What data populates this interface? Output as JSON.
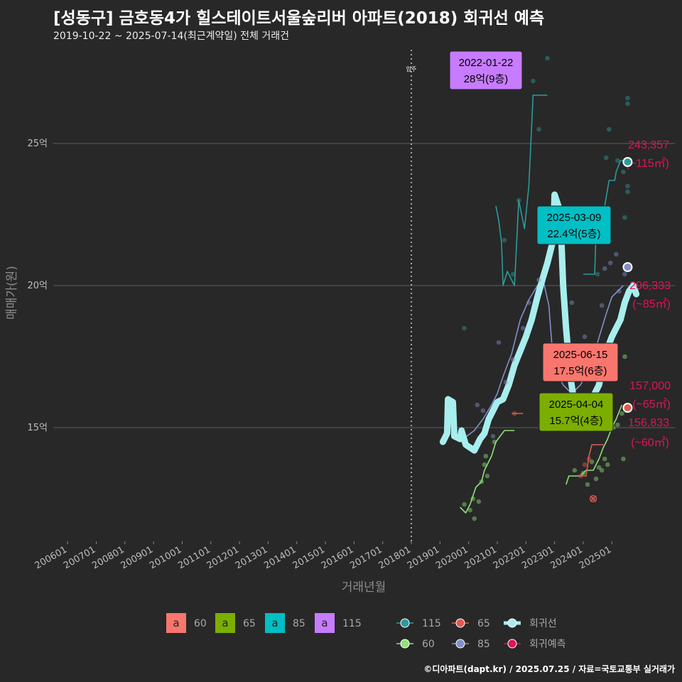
{
  "title": "[성동구] 금호동4가 힐스테이트서울숲리버 아파트(2018) 회귀선 예측",
  "subtitle": "2019-10-22 ~ 2025-07-14(최근계약일) 전체 거래건",
  "credit": "©디아파트(dapt.kr) / 2025.07.25 / 자료=국토교통부 실거래가",
  "colors": {
    "background": "#282828",
    "grid": "#5e5e5e",
    "area60": "#f8766d",
    "area65": "#7cae00",
    "area85": "#00bfc4",
    "area115": "#c77cff",
    "line115": "#2e9a9a",
    "line60": "#8fe07a",
    "line65": "#e05a4e",
    "line85": "#8090c8",
    "regression": "#a8eeee",
    "prediction": "#e0135b"
  },
  "chart_data": {
    "type": "line",
    "xlabel": "거래년월",
    "ylabel": "매매가(원)",
    "x_ticks": [
      "200601",
      "200701",
      "200801",
      "200901",
      "201001",
      "201101",
      "201201",
      "201301",
      "201401",
      "201501",
      "201601",
      "201701",
      "201801",
      "201901",
      "202001",
      "202101",
      "202201",
      "202301",
      "202401",
      "202501"
    ],
    "y_ticks": [
      {
        "value": 15,
        "label": "15억"
      },
      {
        "value": 20,
        "label": "20억"
      },
      {
        "value": 25,
        "label": "25억"
      }
    ],
    "xlim": [
      2005.5,
      2027.2
    ],
    "ylim": [
      11.0,
      28.5
    ],
    "vline": {
      "x": 2018.0,
      "label": "입주"
    },
    "series": [
      {
        "name": "115",
        "role": "area_line",
        "points": [
          [
            2020.95,
            22.8
          ],
          [
            2021.05,
            22.3
          ],
          [
            2021.15,
            21.5
          ],
          [
            2021.2,
            20.0
          ],
          [
            2021.35,
            20.5
          ],
          [
            2021.6,
            20.0
          ],
          [
            2021.75,
            23.0
          ],
          [
            2021.95,
            22.0
          ],
          [
            2022.1,
            23.5
          ],
          [
            2022.25,
            26.7
          ],
          [
            2022.75,
            26.7
          ]
        ]
      },
      {
        "name": "115-late",
        "role": "area_line",
        "points": [
          [
            2024.0,
            20.4
          ],
          [
            2024.4,
            20.4
          ],
          [
            2024.45,
            22.0
          ],
          [
            2024.7,
            22.5
          ],
          [
            2024.9,
            23.7
          ],
          [
            2025.1,
            23.7
          ],
          [
            2025.15,
            24.0
          ],
          [
            2025.3,
            24.4
          ],
          [
            2025.5,
            24.4
          ]
        ]
      },
      {
        "name": "60",
        "role": "area_line",
        "points": [
          [
            2019.7,
            12.2
          ],
          [
            2019.9,
            12.0
          ],
          [
            2020.05,
            12.3
          ],
          [
            2020.25,
            12.9
          ],
          [
            2020.45,
            13.1
          ],
          [
            2020.55,
            13.5
          ],
          [
            2020.8,
            14.0
          ],
          [
            2020.95,
            14.5
          ],
          [
            2021.1,
            14.7
          ],
          [
            2021.25,
            14.9
          ],
          [
            2021.6,
            14.9
          ]
        ]
      },
      {
        "name": "60-late",
        "role": "area_line",
        "points": [
          [
            2023.4,
            13.0
          ],
          [
            2023.5,
            13.3
          ],
          [
            2023.9,
            13.3
          ],
          [
            2024.1,
            13.5
          ],
          [
            2024.35,
            13.5
          ],
          [
            2024.55,
            13.9
          ],
          [
            2024.7,
            14.3
          ],
          [
            2024.85,
            14.6
          ],
          [
            2025.0,
            15.0
          ],
          [
            2025.15,
            15.3
          ],
          [
            2025.35,
            15.8
          ]
        ]
      },
      {
        "name": "65",
        "role": "area_line",
        "points": [
          [
            2021.5,
            15.5
          ],
          [
            2021.9,
            15.5
          ]
        ]
      },
      {
        "name": "65-late",
        "role": "area_line",
        "points": [
          [
            2023.85,
            13.3
          ],
          [
            2024.1,
            13.3
          ],
          [
            2024.2,
            14.0
          ],
          [
            2024.3,
            14.4
          ],
          [
            2024.7,
            14.4
          ]
        ]
      },
      {
        "name": "85",
        "role": "area_line",
        "points": [
          [
            2019.8,
            14.6
          ],
          [
            2020.2,
            14.9
          ],
          [
            2020.5,
            15.3
          ],
          [
            2020.8,
            15.8
          ],
          [
            2021.0,
            16.2
          ],
          [
            2021.2,
            16.8
          ],
          [
            2021.35,
            17.2
          ],
          [
            2021.5,
            17.6
          ],
          [
            2021.8,
            18.8
          ],
          [
            2022.1,
            19.5
          ],
          [
            2022.4,
            20.0
          ],
          [
            2022.6,
            20.2
          ],
          [
            2022.8,
            19.3
          ],
          [
            2022.9,
            18.0
          ],
          [
            2023.05,
            17.0
          ],
          [
            2023.3,
            16.5
          ],
          [
            2023.6,
            16.2
          ],
          [
            2023.9,
            16.5
          ],
          [
            2024.2,
            17.0
          ],
          [
            2024.5,
            18.0
          ],
          [
            2024.8,
            19.0
          ],
          [
            2025.0,
            19.6
          ],
          [
            2025.2,
            19.8
          ],
          [
            2025.4,
            20.0
          ]
        ]
      },
      {
        "name": "회귀선",
        "role": "regression",
        "points": [
          [
            2019.1,
            14.5
          ],
          [
            2019.25,
            14.8
          ],
          [
            2019.28,
            16.0
          ],
          [
            2019.45,
            15.9
          ],
          [
            2019.5,
            14.7
          ],
          [
            2019.7,
            14.6
          ],
          [
            2019.75,
            14.9
          ],
          [
            2019.9,
            14.4
          ],
          [
            2020.2,
            14.2
          ],
          [
            2020.4,
            14.6
          ],
          [
            2020.55,
            14.8
          ],
          [
            2020.7,
            15.3
          ],
          [
            2020.85,
            15.6
          ],
          [
            2021.0,
            15.9
          ],
          [
            2021.2,
            16.0
          ],
          [
            2021.4,
            16.5
          ],
          [
            2021.6,
            17.2
          ],
          [
            2021.8,
            17.7
          ],
          [
            2022.0,
            18.2
          ],
          [
            2022.2,
            18.8
          ],
          [
            2022.4,
            19.6
          ],
          [
            2022.6,
            20.3
          ],
          [
            2022.75,
            20.8
          ],
          [
            2022.85,
            21.2
          ],
          [
            2022.95,
            21.6
          ],
          [
            2023.0,
            23.2
          ],
          [
            2023.2,
            22.6
          ],
          [
            2023.3,
            20.0
          ],
          [
            2023.4,
            18.5
          ],
          [
            2023.55,
            16.8
          ],
          [
            2023.7,
            15.8
          ],
          [
            2023.85,
            15.4
          ],
          [
            2024.0,
            15.0
          ],
          [
            2024.25,
            15.2
          ],
          [
            2024.4,
            16.2
          ],
          [
            2024.55,
            16.5
          ],
          [
            2024.7,
            17.2
          ],
          [
            2024.85,
            17.8
          ],
          [
            2025.0,
            18.2
          ],
          [
            2025.15,
            18.5
          ],
          [
            2025.3,
            18.8
          ],
          [
            2025.45,
            19.4
          ],
          [
            2025.6,
            19.8
          ],
          [
            2025.75,
            20.0
          ],
          [
            2025.85,
            19.7
          ]
        ]
      }
    ],
    "scatter": [
      {
        "color": "#2e9a9a",
        "points": [
          [
            2021.25,
            21.6
          ],
          [
            2021.55,
            20.4
          ],
          [
            2021.75,
            23.0
          ],
          [
            2022.25,
            27.2
          ],
          [
            2022.45,
            25.5
          ],
          [
            2022.75,
            28.0
          ],
          [
            2024.5,
            20.4
          ],
          [
            2024.8,
            24.5
          ],
          [
            2024.9,
            25.5
          ],
          [
            2025.2,
            24.4
          ],
          [
            2025.55,
            26.6
          ],
          [
            2025.55,
            26.4
          ],
          [
            2025.55,
            23.3
          ],
          [
            2025.55,
            23.5
          ],
          [
            2025.4,
            24.0
          ],
          [
            2025.45,
            22.4
          ],
          [
            2019.85,
            18.5
          ]
        ]
      },
      {
        "color": "#8fe07a",
        "points": [
          [
            2019.85,
            12.3
          ],
          [
            2020.05,
            12.1
          ],
          [
            2020.15,
            12.5
          ],
          [
            2020.2,
            11.8
          ],
          [
            2020.35,
            12.4
          ],
          [
            2020.45,
            13.1
          ],
          [
            2020.55,
            13.7
          ],
          [
            2020.6,
            14.0
          ],
          [
            2020.65,
            13.3
          ],
          [
            2020.9,
            14.5
          ],
          [
            2023.7,
            13.5
          ],
          [
            2024.0,
            13.4
          ],
          [
            2024.15,
            13.0
          ],
          [
            2024.3,
            13.8
          ],
          [
            2024.45,
            13.2
          ],
          [
            2024.55,
            13.6
          ],
          [
            2024.65,
            13.5
          ],
          [
            2024.75,
            13.9
          ],
          [
            2024.85,
            13.7
          ],
          [
            2025.05,
            15.0
          ],
          [
            2025.2,
            15.1
          ],
          [
            2025.35,
            15.5
          ],
          [
            2025.4,
            13.9
          ],
          [
            2025.45,
            17.5
          ]
        ]
      },
      {
        "color": "#e05a4e",
        "points": [
          [
            2021.6,
            15.5
          ],
          [
            2023.9,
            13.3
          ],
          [
            2024.05,
            13.7
          ],
          [
            2024.2,
            13.9
          ],
          [
            2024.35,
            12.5
          ]
        ]
      },
      {
        "color": "#8090c8",
        "points": [
          [
            2020.3,
            15.8
          ],
          [
            2020.5,
            15.6
          ],
          [
            2020.85,
            14.7
          ],
          [
            2021.05,
            18.0
          ],
          [
            2021.3,
            16.6
          ],
          [
            2021.55,
            17.4
          ],
          [
            2021.9,
            18.5
          ],
          [
            2022.1,
            19.4
          ],
          [
            2022.45,
            20.2
          ],
          [
            2023.6,
            19.4
          ],
          [
            2024.05,
            18.2
          ],
          [
            2024.3,
            17.6
          ],
          [
            2024.65,
            19.3
          ],
          [
            2024.75,
            20.6
          ],
          [
            2024.95,
            20.8
          ],
          [
            2025.15,
            21.1
          ],
          [
            2025.25,
            19.8
          ],
          [
            2025.45,
            20.4
          ]
        ]
      }
    ],
    "cross_marks": [
      [
        2024.35,
        12.5
      ]
    ],
    "annotations": [
      {
        "date": "2022-01-22",
        "text": "28억(9층)",
        "area": "115",
        "x": 2021.85,
        "y": 28.0,
        "fill": "#c77cff"
      },
      {
        "date": "2025-03-09",
        "text": "22.4억(5층)",
        "area": "85",
        "x": 2025.2,
        "y": 22.4,
        "fill": "#00bfc4"
      },
      {
        "date": "2025-06-15",
        "text": "17.5억(6층)",
        "area": "60",
        "x": 2025.45,
        "y": 17.5,
        "fill": "#f8766d"
      },
      {
        "date": "2025-04-04",
        "text": "15.7억(4층)",
        "area": "65",
        "x": 2025.25,
        "y": 15.7,
        "fill": "#7cae00"
      }
    ],
    "predictions": [
      {
        "value": "243,357",
        "area": "(~115㎡)",
        "x": 2025.55,
        "y": 24.35,
        "point_color": "#2e9a9a"
      },
      {
        "value": "206,333",
        "area": "(~85㎡)",
        "x": 2025.55,
        "y": 20.65,
        "point_color": "#8090c8"
      },
      {
        "value": "157,000",
        "area": "(~65㎡)",
        "x": 2025.55,
        "y": 15.7,
        "point_color": "#e05a4e"
      },
      {
        "value": "156,833",
        "area": "(~60㎡)",
        "x": 2025.55,
        "y": 15.68,
        "point_color": "#8fe07a"
      }
    ],
    "legend_areas": [
      {
        "key": "a",
        "label": "60",
        "color": "#f8766d"
      },
      {
        "key": "a",
        "label": "65",
        "color": "#7cae00"
      },
      {
        "key": "a",
        "label": "85",
        "color": "#00bfc4"
      },
      {
        "key": "a",
        "label": "115",
        "color": "#c77cff"
      }
    ],
    "legend_lines": [
      {
        "label": "115",
        "color": "#2e9a9a"
      },
      {
        "label": "65",
        "color": "#e05a4e"
      },
      {
        "label": "회귀선",
        "color": "#a8eeee"
      },
      {
        "label": "60",
        "color": "#8fe07a"
      },
      {
        "label": "85",
        "color": "#8090c8"
      },
      {
        "label": "회귀예측",
        "color": "#e0135b"
      }
    ]
  }
}
